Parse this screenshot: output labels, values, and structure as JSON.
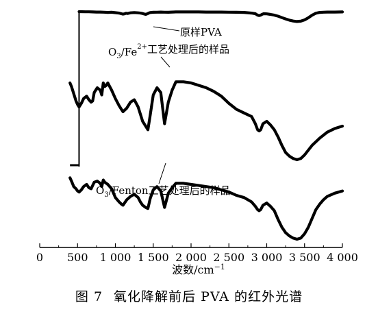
{
  "chart_data": {
    "type": "line",
    "xlabel": "波数/cm",
    "xlabel_sup": "−1",
    "xlim": [
      0,
      4000
    ],
    "x_ticks": [
      0,
      500,
      1000,
      1500,
      2000,
      2500,
      3000,
      3500,
      4000
    ],
    "x_tick_labels": [
      "0",
      "500",
      "1 000",
      "1 500",
      "2 000",
      "2 500",
      "3 000",
      "3 500",
      "4 000"
    ],
    "grid": false,
    "legend": "inline labels",
    "line_color": "#000000",
    "series": [
      {
        "name": "原样PVA",
        "label_parts": [
          "原样PVA"
        ],
        "x": [
          520,
          600,
          650,
          700,
          750,
          800,
          850,
          900,
          950,
          1000,
          1050,
          1080,
          1100,
          1120,
          1140,
          1160,
          1200,
          1250,
          1300,
          1330,
          1360,
          1380,
          1400,
          1420,
          1440,
          1460,
          1500,
          1550,
          1600,
          1650,
          1700,
          1750,
          1800,
          1900,
          2000,
          2100,
          2200,
          2300,
          2400,
          2500,
          2600,
          2700,
          2800,
          2850,
          2880,
          2900,
          2920,
          2940,
          2960,
          3000,
          3050,
          3100,
          3150,
          3200,
          3250,
          3300,
          3350,
          3400,
          3450,
          3500,
          3550,
          3600,
          3650,
          3700,
          3750,
          3800,
          3900,
          4000
        ],
        "y": [
          0.0,
          0.01,
          0.01,
          0.02,
          0.03,
          0.03,
          0.04,
          0.06,
          0.05,
          0.08,
          0.11,
          0.16,
          0.19,
          0.17,
          0.12,
          0.14,
          0.09,
          0.07,
          0.09,
          0.11,
          0.14,
          0.18,
          0.21,
          0.17,
          0.11,
          0.07,
          0.05,
          0.04,
          0.03,
          0.04,
          0.05,
          0.03,
          0.02,
          0.02,
          0.02,
          0.02,
          0.03,
          0.03,
          0.03,
          0.04,
          0.05,
          0.06,
          0.11,
          0.16,
          0.27,
          0.3,
          0.27,
          0.2,
          0.16,
          0.17,
          0.21,
          0.27,
          0.35,
          0.46,
          0.56,
          0.65,
          0.72,
          0.76,
          0.73,
          0.63,
          0.47,
          0.27,
          0.12,
          0.06,
          0.04,
          0.03,
          0.03,
          0.02
        ]
      },
      {
        "name": "O3/Fe2+工艺处理后的样品",
        "label_parts": [
          "O",
          "3",
          "/Fe",
          "2+",
          "工艺处理后的样品"
        ],
        "x": [
          400,
          420,
          450,
          480,
          500,
          520,
          550,
          580,
          600,
          620,
          650,
          680,
          700,
          720,
          760,
          800,
          820,
          840,
          860,
          880,
          900,
          950,
          1000,
          1050,
          1080,
          1100,
          1150,
          1200,
          1250,
          1300,
          1330,
          1360,
          1400,
          1430,
          1460,
          1500,
          1550,
          1600,
          1650,
          1700,
          1750,
          1800,
          1900,
          2000,
          2100,
          2200,
          2300,
          2400,
          2500,
          2600,
          2700,
          2800,
          2850,
          2880,
          2900,
          2920,
          2950,
          3000,
          3050,
          3100,
          3150,
          3200,
          3250,
          3300,
          3350,
          3400,
          3450,
          3500,
          3550,
          3600,
          3700,
          3800,
          3900,
          4000
        ],
        "y": [
          1.0,
          1.15,
          1.45,
          1.75,
          1.9,
          2.0,
          1.85,
          1.65,
          1.6,
          1.55,
          1.7,
          1.8,
          1.75,
          1.4,
          1.2,
          1.3,
          1.5,
          1.0,
          1.15,
          1.1,
          1.0,
          1.3,
          1.65,
          1.95,
          2.1,
          2.2,
          2.05,
          1.8,
          1.7,
          2.0,
          2.3,
          2.6,
          2.8,
          2.95,
          2.35,
          1.5,
          1.2,
          1.4,
          2.7,
          1.8,
          1.3,
          0.95,
          0.95,
          1.0,
          1.1,
          1.2,
          1.35,
          1.55,
          1.85,
          2.1,
          2.25,
          2.4,
          2.7,
          2.95,
          3.0,
          2.95,
          2.7,
          2.6,
          2.75,
          2.95,
          3.25,
          3.6,
          3.9,
          4.05,
          4.15,
          4.2,
          4.15,
          4.0,
          3.8,
          3.6,
          3.3,
          3.05,
          2.9,
          2.8
        ]
      },
      {
        "name": "O3/Fenton工艺处理后的样品",
        "label_parts": [
          "O",
          "3",
          "/Fenton工艺处理后的样品"
        ],
        "x": [
          400,
          420,
          450,
          480,
          500,
          520,
          550,
          580,
          600,
          620,
          650,
          680,
          700,
          720,
          760,
          800,
          820,
          840,
          860,
          880,
          900,
          950,
          1000,
          1050,
          1080,
          1100,
          1150,
          1200,
          1250,
          1300,
          1330,
          1360,
          1400,
          1430,
          1460,
          1500,
          1550,
          1600,
          1650,
          1700,
          1750,
          1800,
          1900,
          2000,
          2100,
          2200,
          2300,
          2400,
          2500,
          2600,
          2700,
          2800,
          2850,
          2880,
          2900,
          2920,
          2950,
          3000,
          3050,
          3100,
          3150,
          3200,
          3250,
          3300,
          3350,
          3400,
          3450,
          3500,
          3550,
          3600,
          3650,
          3700,
          3750,
          3800,
          3900,
          4000
        ],
        "y": [
          2.7,
          2.85,
          3.1,
          3.2,
          3.3,
          3.35,
          3.25,
          3.1,
          3.05,
          3.0,
          3.15,
          3.2,
          3.05,
          2.9,
          2.85,
          2.95,
          3.1,
          2.8,
          2.9,
          2.95,
          3.0,
          3.2,
          3.6,
          3.8,
          3.9,
          3.95,
          3.7,
          3.55,
          3.45,
          3.6,
          3.8,
          3.95,
          4.05,
          4.1,
          3.65,
          3.25,
          3.1,
          3.3,
          4.05,
          3.4,
          3.15,
          2.95,
          2.95,
          3.0,
          3.05,
          3.1,
          3.15,
          3.25,
          3.35,
          3.5,
          3.6,
          3.8,
          4.0,
          4.15,
          4.2,
          4.15,
          3.95,
          3.85,
          4.0,
          4.2,
          4.6,
          4.95,
          5.2,
          5.35,
          5.45,
          5.5,
          5.45,
          5.25,
          4.95,
          4.55,
          4.15,
          3.9,
          3.7,
          3.55,
          3.4,
          3.3
        ]
      }
    ]
  },
  "caption": {
    "number": "图 7",
    "text": "氧化降解前后 PVA 的红外光谱"
  }
}
